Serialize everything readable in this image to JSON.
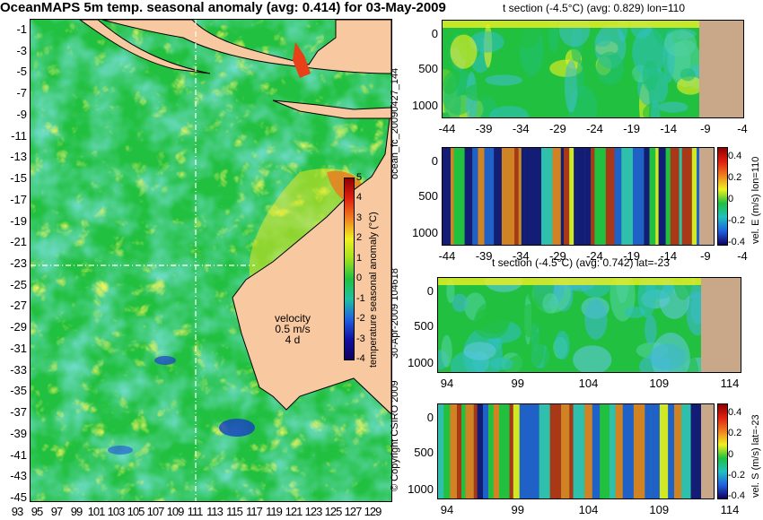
{
  "main_title": "OceanMAPS 5m temp. seasonal anomaly (avg: 0.414) for 03-May-2009",
  "map": {
    "lat_labels": [
      "-1",
      "-3",
      "-5",
      "-7",
      "-9",
      "-11",
      "-13",
      "-15",
      "-17",
      "-19",
      "-21",
      "-23",
      "-25",
      "-27",
      "-29",
      "-31",
      "-33",
      "-35",
      "-37",
      "-39",
      "-41",
      "-43",
      "-45"
    ],
    "lon_labels": [
      "93",
      "95",
      "97",
      "99",
      "101",
      "103",
      "105",
      "107",
      "109",
      "111",
      "113",
      "115",
      "117",
      "119",
      "121",
      "123",
      "125",
      "127",
      "129"
    ],
    "velocity_label": "velocity",
    "velocity_speed": "0.5 m/s",
    "velocity_dir": "4 d",
    "colorbar": {
      "label": "temperature seasonal anomaly (°C)",
      "ticks": [
        "5",
        "4",
        "3",
        "2",
        "1",
        "0",
        "-1",
        "-2",
        "-3",
        "-4"
      ],
      "range": [
        -4,
        5
      ]
    }
  },
  "side_labels": {
    "forecast_id": "ocean_fc_20090427_144",
    "timestamp": "30-Apr-2009 104618",
    "copyright": "© Copyright CSIRO 2009"
  },
  "panels": [
    {
      "title": "t section (-4.5°C) (avg: 0.829) lon=110",
      "x_ticks": [
        "-44",
        "-39",
        "-34",
        "-29",
        "-24",
        "-19",
        "-14",
        "-9",
        "-4"
      ],
      "y_ticks": [
        "0",
        "500",
        "1000"
      ],
      "colorbar_label": "",
      "colorbar_ticks": []
    },
    {
      "title": "",
      "x_ticks": [
        "-44",
        "-39",
        "-34",
        "-29",
        "-24",
        "-19",
        "-14",
        "-9",
        "-4"
      ],
      "y_ticks": [
        "0",
        "500",
        "1000"
      ],
      "colorbar_label": "vel. E (m/s) lon=110",
      "colorbar_ticks": [
        "0.4",
        "0.2",
        "0",
        "-0.2",
        "-0.4"
      ]
    },
    {
      "title": "t section (-4.5°C) (avg: 0.742) lat=-23",
      "x_ticks": [
        "94",
        "99",
        "104",
        "109",
        "114"
      ],
      "y_ticks": [
        "0",
        "500",
        "1000"
      ],
      "colorbar_label": "",
      "colorbar_ticks": []
    },
    {
      "title": "",
      "x_ticks": [
        "94",
        "99",
        "104",
        "109",
        "114"
      ],
      "y_ticks": [
        "0",
        "500",
        "1000"
      ],
      "colorbar_label": "vel. S (m/s) lat=-23",
      "colorbar_ticks": [
        "0.4",
        "0.2",
        "0",
        "-0.2",
        "-0.4"
      ]
    }
  ],
  "colors": {
    "land": "#f8c8a0",
    "bathy": "#c8a888",
    "ocean_green": "#22c040",
    "ocean_cyan": "#30c0c0",
    "warm_yellow": "#f0f020",
    "hot_orange": "#f07820",
    "hot_red": "#c02010",
    "cold_blue": "#2050e0",
    "deep_navy": "#100080"
  }
}
